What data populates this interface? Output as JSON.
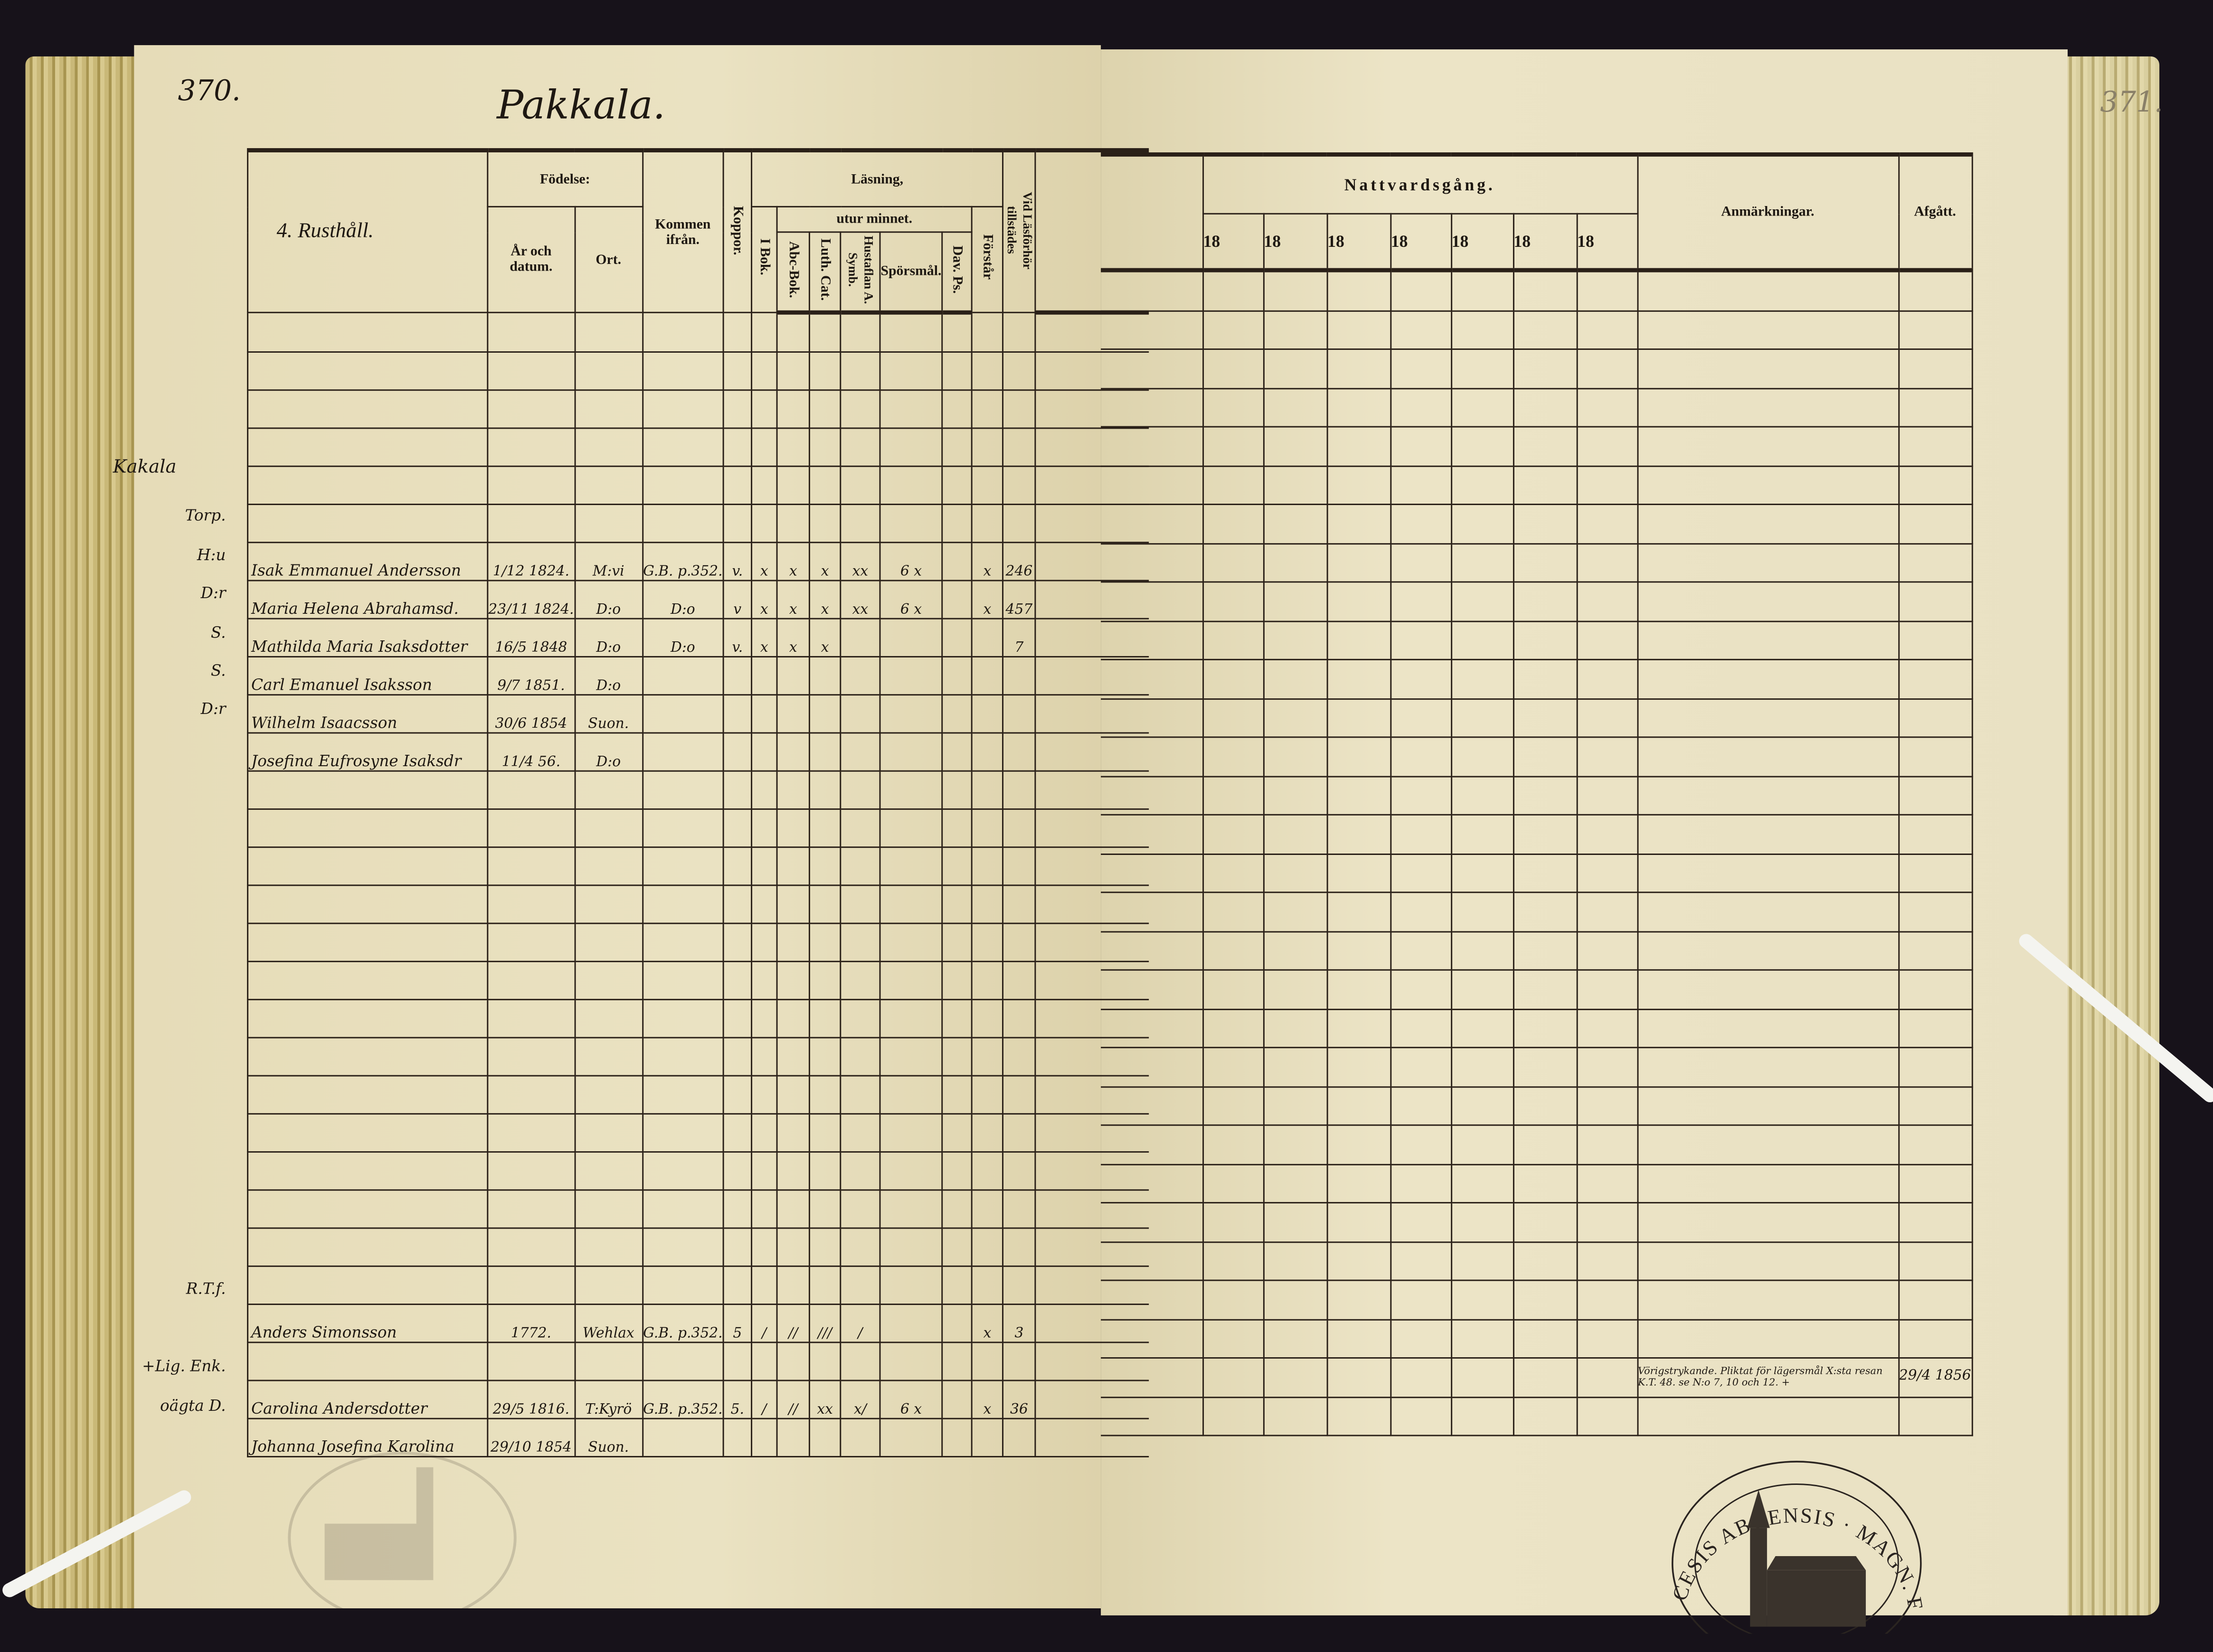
{
  "left_page": {
    "page_number": "370.",
    "village_title": "Pakkala.",
    "header": {
      "farm": "4. Rusthåll.",
      "fodelse": "Födelse:",
      "ar_och_datum": "År och datum.",
      "ort": "Ort.",
      "kommen_ifran": "Kommen ifrån.",
      "koppor": "Koppor.",
      "lasning": "Läsning,",
      "i_bok": "I Bok.",
      "utur_minnet": "utur minnet.",
      "abc_bok": "Abc-Bok.",
      "luth_cat": "Luth. Cat.",
      "hustaflan": "Hustaflan A. Symb.",
      "sporsmal": "Spörsmål.",
      "dav_ps": "Dav. Ps.",
      "forstar": "Förstår",
      "vid_lasforhor": "Vid Läsförhör tillstädes"
    },
    "section_label": "Kakala",
    "entries": [
      {
        "role": "Torp.",
        "name": "Isak Emmanuel Andersson",
        "born": "1/12 1824.",
        "place": "M:vi",
        "from": "G.B. p.352.",
        "koppor": "v.",
        "i_bok": "x",
        "abc": "x",
        "luth": "x",
        "hust": "xx",
        "spors": "6 x",
        "dav": "",
        "forstar": "x",
        "vid": "246"
      },
      {
        "role": "H:u",
        "name": "Maria Helena Abrahamsd.",
        "born": "23/11 1824.",
        "place": "D:o",
        "from": "D:o",
        "koppor": "v",
        "i_bok": "x",
        "abc": "x",
        "luth": "x",
        "hust": "xx",
        "spors": "6 x",
        "dav": "",
        "forstar": "x",
        "vid": "457"
      },
      {
        "role": "D:r",
        "name": "Mathilda Maria Isaksdotter",
        "born": "16/5 1848",
        "place": "D:o",
        "from": "D:o",
        "koppor": "v.",
        "i_bok": "x",
        "abc": "x",
        "luth": "x",
        "hust": "",
        "spors": "",
        "dav": "",
        "forstar": "",
        "vid": "7"
      },
      {
        "role": "S.",
        "name": "Carl Emanuel Isaksson",
        "born": "9/7 1851.",
        "place": "D:o",
        "from": "",
        "koppor": "",
        "i_bok": "",
        "abc": "",
        "luth": "",
        "hust": "",
        "spors": "",
        "dav": "",
        "forstar": "",
        "vid": ""
      },
      {
        "role": "S.",
        "name": "Wilhelm Isaacsson",
        "born": "30/6 1854",
        "place": "Suon.",
        "from": "",
        "koppor": "",
        "i_bok": "",
        "abc": "",
        "luth": "",
        "hust": "",
        "spors": "",
        "dav": "",
        "forstar": "",
        "vid": ""
      },
      {
        "role": "D:r",
        "name": "Josefina Eufrosyne Isaksdr",
        "born": "11/4 56.",
        "place": "D:o",
        "from": "",
        "koppor": "",
        "i_bok": "",
        "abc": "",
        "luth": "",
        "hust": "",
        "spors": "",
        "dav": "",
        "forstar": "",
        "vid": ""
      },
      {
        "role": "R.T.f.",
        "name": "Anders Simonsson",
        "born": "1772.",
        "place": "Wehlax",
        "from": "G.B. p.352.",
        "koppor": "5",
        "i_bok": "/",
        "abc": "//",
        "luth": "///",
        "hust": "/",
        "spors": "",
        "dav": "",
        "forstar": "x",
        "vid": "3"
      },
      {
        "role": "+Lig. Enk.",
        "name": "Carolina Andersdotter",
        "born": "29/5 1816.",
        "place": "T:Kyrö",
        "from": "G.B. p.352.",
        "koppor": "5.",
        "i_bok": "/",
        "abc": "//",
        "luth": "xx",
        "hust": "x/",
        "spors": "6 x",
        "dav": "",
        "forstar": "x",
        "vid": "36"
      },
      {
        "role": "oägta D.",
        "name": "Johanna Josefina Karolina",
        "born": "29/10 1854",
        "place": "Suon.",
        "from": "",
        "koppor": "",
        "i_bok": "",
        "abc": "",
        "luth": "",
        "hust": "",
        "spors": "",
        "dav": "",
        "forstar": "",
        "vid": ""
      }
    ]
  },
  "right_page": {
    "page_number": "371.",
    "header": {
      "nattvardsgang": "Nattvardsgång.",
      "years": [
        "18",
        "18",
        "18",
        "18",
        "18",
        "18",
        "18"
      ],
      "anmarkningar": "Anmärkningar.",
      "afgatt": "Afgått."
    },
    "remark": {
      "text": "Vörigstrykande. Pliktat för lägersmål X:sta resan K.T. 48. se N:o 7, 10 och 12. +",
      "afgatt": "29/4 1856"
    }
  },
  "stamp": {
    "text_top": "DIOECESIS ABOENSIS",
    "text_bottom": "MAGN. FINL."
  },
  "colors": {
    "paper": "#e9e1c3",
    "ink": "#1e1812",
    "background": "#17121a"
  }
}
